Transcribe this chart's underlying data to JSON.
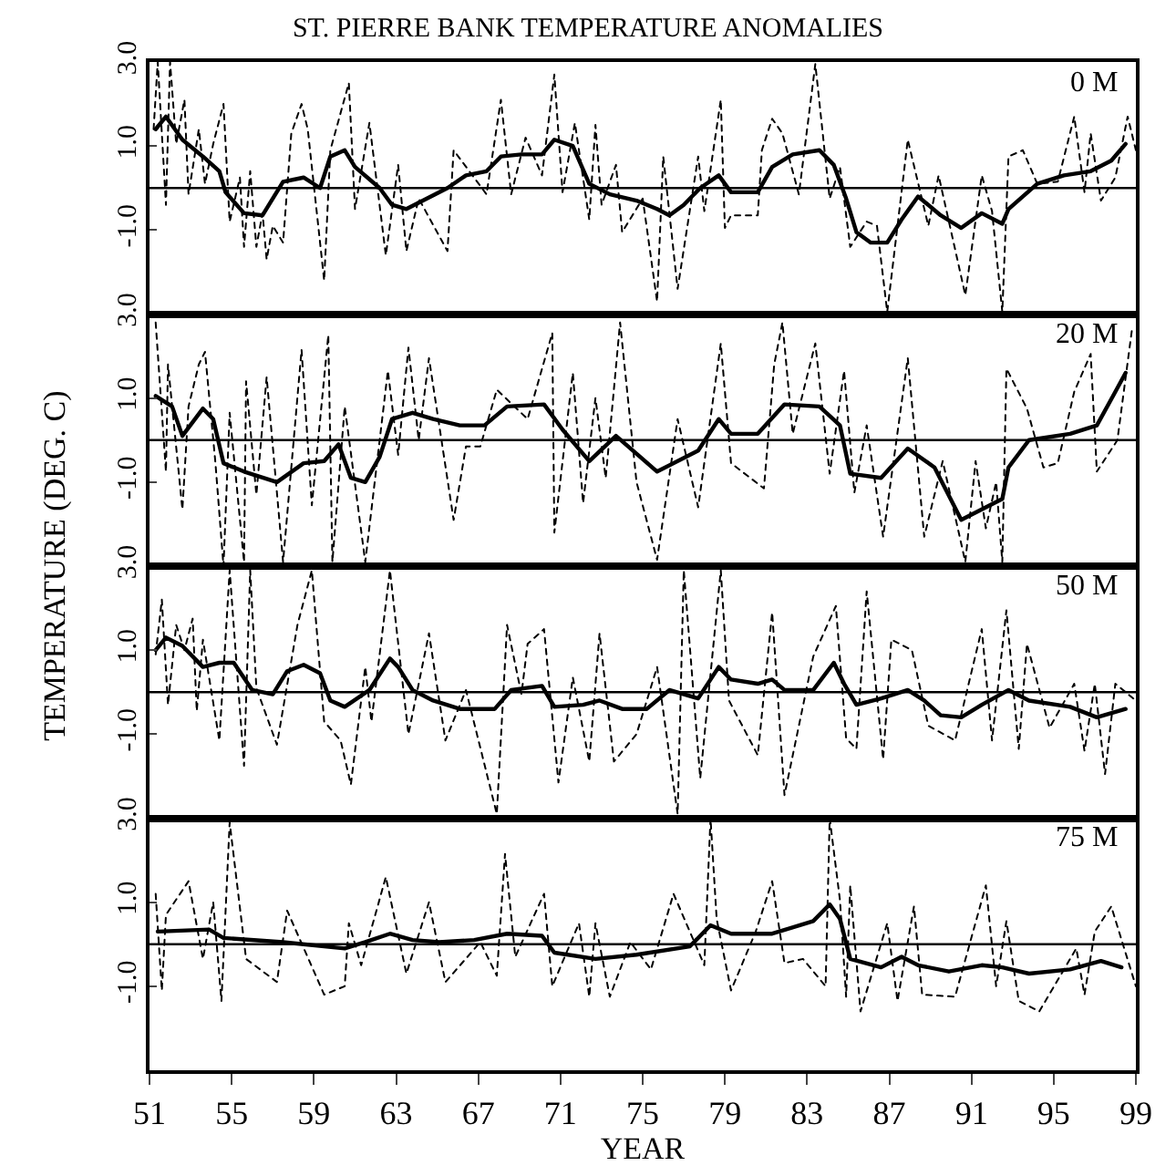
{
  "chart_data": [
    {
      "type": "line",
      "title": "ST. PIERRE BANK TEMPERATURE ANOMALIES",
      "ylabel": "TEMPERATURE (DEG. C)",
      "annotations": [
        "0 M"
      ],
      "xlim": [
        51,
        99
      ],
      "xticks": [
        51,
        55,
        59,
        63,
        67,
        71,
        75,
        79,
        83,
        87,
        91,
        95,
        99
      ],
      "ylim": [
        -3,
        3
      ],
      "yticks": [
        {
          "value": 3,
          "label": "3.0"
        },
        {
          "value": 1,
          "label": "1.0"
        },
        {
          "value": -1,
          "label": "-1.0"
        },
        {
          "value": -3,
          "label": null
        }
      ],
      "tick_labels": "y",
      "grid": false,
      "marker": "none",
      "ref_lines": [
        {
          "axis": "y",
          "value": 0,
          "color": "#000000"
        }
      ],
      "series": [
        {
          "color": "#000000",
          "line_style": "dotted",
          "x": [
            51.2,
            51.4,
            51.8,
            52.0,
            52.3,
            52.7,
            52.9,
            53.4,
            53.7,
            54.1,
            54.6,
            54.9,
            55.4,
            55.6,
            55.9,
            56.2,
            56.5,
            56.7,
            57.0,
            57.5,
            57.9,
            58.4,
            58.7,
            59.5,
            59.8,
            60.7,
            61.0,
            61.7,
            62.5,
            63.1,
            63.5,
            64.1,
            65.5,
            65.8,
            67.4,
            68.1,
            68.6,
            69.3,
            70.1,
            70.7,
            71.1,
            71.7,
            72.4,
            72.7,
            73.0,
            73.7,
            74.0,
            75.0,
            75.7,
            76.0,
            76.7,
            77.7,
            78.0,
            78.8,
            79.0,
            79.3,
            80.6,
            80.8,
            81.3,
            81.8,
            82.6,
            83.4,
            84.1,
            84.6,
            85.1,
            85.9,
            86.4,
            86.9,
            87.9,
            88.9,
            89.4,
            90.7,
            91.5,
            92.0,
            92.5,
            92.8,
            93.5,
            94.2,
            95.2,
            96.0,
            96.5,
            96.8,
            97.3,
            98.0,
            98.6,
            99.0
          ],
          "values": [
            1.4,
            3.0,
            -0.4,
            3.0,
            1.05,
            2.1,
            -0.15,
            1.4,
            0.1,
            1.05,
            2.0,
            -0.8,
            0.25,
            -1.4,
            0.4,
            -1.4,
            -0.6,
            -1.7,
            -0.9,
            -1.3,
            1.3,
            2.0,
            1.4,
            -2.2,
            0.9,
            2.5,
            -0.5,
            1.55,
            -1.6,
            0.55,
            -1.5,
            -0.25,
            -1.5,
            0.9,
            -0.15,
            2.1,
            -0.15,
            1.2,
            0.3,
            2.7,
            -0.1,
            1.55,
            -0.75,
            1.5,
            -0.4,
            0.55,
            -1.05,
            -0.25,
            -2.7,
            0.75,
            -2.4,
            0.75,
            -0.55,
            2.1,
            -0.95,
            -0.65,
            -0.65,
            0.9,
            1.65,
            1.3,
            -0.15,
            2.95,
            -0.25,
            0.5,
            -1.4,
            -0.8,
            -0.9,
            -2.95,
            1.15,
            -0.9,
            0.3,
            -2.55,
            0.3,
            -0.55,
            -2.95,
            0.75,
            0.9,
            0.1,
            0.15,
            1.7,
            -0.1,
            1.3,
            -0.3,
            0.25,
            1.7,
            0.9
          ]
        },
        {
          "color": "#000000",
          "line_style": "solid",
          "x": [
            51.3,
            51.8,
            52.6,
            53.6,
            54.4,
            54.7,
            55.6,
            56.5,
            57.5,
            58.5,
            59.3,
            59.8,
            60.5,
            61.0,
            62.2,
            62.8,
            63.5,
            64.5,
            65.5,
            66.4,
            67.4,
            68.1,
            69.1,
            70.1,
            70.7,
            71.6,
            72.4,
            73.4,
            74.7,
            75.7,
            76.3,
            77.0,
            77.8,
            78.7,
            79.3,
            80.6,
            81.3,
            82.3,
            83.6,
            84.3,
            84.9,
            85.4,
            86.1,
            86.9,
            87.6,
            88.4,
            89.5,
            90.5,
            91.5,
            92.5,
            92.8,
            94.2,
            95.5,
            96.8,
            97.8,
            98.5
          ],
          "values": [
            1.4,
            1.7,
            1.15,
            0.75,
            0.4,
            -0.1,
            -0.6,
            -0.65,
            0.15,
            0.25,
            0,
            0.75,
            0.9,
            0.5,
            0,
            -0.4,
            -0.5,
            -0.25,
            0,
            0.3,
            0.4,
            0.75,
            0.8,
            0.8,
            1.15,
            1.0,
            0.1,
            -0.15,
            -0.3,
            -0.5,
            -0.65,
            -0.4,
            0,
            0.3,
            -0.1,
            -0.1,
            0.5,
            0.8,
            0.9,
            0.55,
            -0.25,
            -1.05,
            -1.3,
            -1.3,
            -0.75,
            -0.2,
            -0.65,
            -0.95,
            -0.6,
            -0.85,
            -0.5,
            0.1,
            0.3,
            0.4,
            0.65,
            1.05
          ]
        }
      ]
    },
    {
      "type": "line",
      "annotations": [
        "20 M"
      ],
      "xlim": [
        51,
        99
      ],
      "xticks": [
        51,
        55,
        59,
        63,
        67,
        71,
        75,
        79,
        83,
        87,
        91,
        95,
        99
      ],
      "ylim": [
        -3,
        3
      ],
      "yticks": [
        {
          "value": 3,
          "label": "3.0"
        },
        {
          "value": 1,
          "label": "1.0"
        },
        {
          "value": -1,
          "label": "-1.0"
        },
        {
          "value": -3,
          "label": null
        }
      ],
      "tick_labels": "y",
      "grid": false,
      "marker": "none",
      "ref_lines": [
        {
          "axis": "y",
          "value": 0,
          "color": "#000000"
        }
      ],
      "series": [
        {
          "color": "#000000",
          "line_style": "dotted",
          "x": [
            51.3,
            51.8,
            51.9,
            52.6,
            52.9,
            53.4,
            53.7,
            54.2,
            54.6,
            54.9,
            55.6,
            55.7,
            56.2,
            56.7,
            57.5,
            58.4,
            58.9,
            59.7,
            59.9,
            60.5,
            61.5,
            62.6,
            63.1,
            63.6,
            64.1,
            64.6,
            65.8,
            66.4,
            67.1,
            67.9,
            69.4,
            70.6,
            70.7,
            71.6,
            72.1,
            72.7,
            73.2,
            73.9,
            74.7,
            75.7,
            76.7,
            77.7,
            78.8,
            79.3,
            80.9,
            81.4,
            81.8,
            82.3,
            83.4,
            84.1,
            84.8,
            85.3,
            85.9,
            86.7,
            87.9,
            88.7,
            89.6,
            90.7,
            91.2,
            91.7,
            92.2,
            92.5,
            92.7,
            93.7,
            94.5,
            95.2,
            96.0,
            96.8,
            97.1,
            98.1,
            98.8
          ],
          "values": [
            2.8,
            -0.75,
            1.8,
            -1.65,
            0.8,
            1.8,
            2.1,
            -0.5,
            -3.0,
            0.65,
            -2.9,
            1.4,
            -1.3,
            1.5,
            -2.9,
            2.15,
            -1.55,
            2.5,
            -2.9,
            0.8,
            -2.9,
            1.65,
            -0.35,
            2.2,
            0,
            1.95,
            -1.9,
            -0.15,
            -0.15,
            1.2,
            0.5,
            2.55,
            -2.2,
            1.6,
            -1.5,
            1.0,
            -0.9,
            2.8,
            -1.0,
            -2.85,
            0.5,
            -1.6,
            2.3,
            -0.55,
            -1.15,
            1.8,
            2.8,
            0.15,
            2.3,
            -0.8,
            1.65,
            -1.25,
            0.35,
            -2.3,
            1.95,
            -2.3,
            -0.5,
            -2.9,
            -0.5,
            -2.1,
            -1.0,
            -2.9,
            1.7,
            0.75,
            -0.65,
            -0.55,
            1.15,
            2.05,
            -0.75,
            0,
            2.6
          ]
        },
        {
          "color": "#000000",
          "line_style": "solid",
          "x": [
            51.3,
            52.1,
            52.6,
            53.6,
            54.1,
            54.6,
            55.6,
            57.2,
            58.5,
            59.5,
            60.2,
            60.8,
            61.5,
            62.2,
            62.8,
            63.8,
            64.8,
            66.1,
            67.3,
            68.4,
            70.2,
            71.1,
            72.4,
            73.7,
            75.7,
            77.7,
            78.7,
            79.3,
            80.6,
            81.9,
            83.6,
            84.6,
            85.1,
            86.6,
            87.9,
            89.2,
            90.5,
            91.5,
            92.5,
            92.8,
            93.8,
            95.8,
            97.1,
            98.0,
            98.5
          ],
          "values": [
            1.05,
            0.8,
            0.1,
            0.75,
            0.5,
            -0.55,
            -0.75,
            -1.0,
            -0.55,
            -0.5,
            -0.1,
            -0.9,
            -1.0,
            -0.4,
            0.5,
            0.65,
            0.5,
            0.35,
            0.35,
            0.8,
            0.85,
            0.25,
            -0.5,
            0.1,
            -0.75,
            -0.25,
            0.5,
            0.15,
            0.15,
            0.85,
            0.8,
            0.35,
            -0.8,
            -0.9,
            -0.2,
            -0.65,
            -1.9,
            -1.65,
            -1.4,
            -0.65,
            0,
            0.15,
            0.35,
            1.15,
            1.6
          ]
        }
      ]
    },
    {
      "type": "line",
      "annotations": [
        "50 M"
      ],
      "xlim": [
        51,
        99
      ],
      "xticks": [
        51,
        55,
        59,
        63,
        67,
        71,
        75,
        79,
        83,
        87,
        91,
        95,
        99
      ],
      "ylim": [
        -3,
        3
      ],
      "yticks": [
        {
          "value": 3,
          "label": "3.0"
        },
        {
          "value": 1,
          "label": "1.0"
        },
        {
          "value": -1,
          "label": "-1.0"
        },
        {
          "value": -3,
          "label": null
        }
      ],
      "tick_labels": "y",
      "grid": false,
      "marker": "none",
      "ref_lines": [
        {
          "axis": "y",
          "value": 0,
          "color": "#000000"
        }
      ],
      "series": [
        {
          "color": "#000000",
          "line_style": "dotted",
          "x": [
            51.3,
            51.6,
            51.9,
            52.3,
            52.7,
            53.1,
            53.3,
            53.6,
            54.4,
            54.9,
            55.6,
            55.9,
            56.2,
            57.2,
            58.2,
            58.9,
            59.5,
            60.3,
            60.8,
            61.5,
            61.8,
            62.7,
            63.6,
            64.6,
            65.4,
            66.4,
            67.9,
            68.4,
            69.1,
            69.4,
            70.2,
            70.9,
            71.6,
            72.4,
            72.9,
            73.6,
            74.7,
            75.7,
            76.7,
            77.0,
            77.8,
            78.8,
            79.2,
            80.6,
            81.3,
            81.9,
            83.3,
            84.4,
            84.9,
            85.4,
            85.9,
            86.7,
            87.1,
            88.1,
            88.9,
            90.2,
            91.5,
            92.0,
            92.7,
            93.3,
            93.7,
            94.8,
            96.0,
            96.5,
            97.0,
            97.5,
            98.0,
            99.0
          ],
          "values": [
            0.9,
            2.2,
            -0.3,
            1.6,
            1.0,
            1.75,
            -0.45,
            1.25,
            -1.15,
            2.9,
            -1.75,
            2.9,
            0.1,
            -1.25,
            1.6,
            2.9,
            -0.7,
            -1.15,
            -2.2,
            0.6,
            -0.7,
            2.9,
            -1.0,
            1.4,
            -1.15,
            0.05,
            -2.9,
            1.6,
            -0.05,
            1.15,
            1.5,
            -2.15,
            0.35,
            -1.65,
            1.4,
            -1.65,
            -1.0,
            0.6,
            -2.9,
            2.9,
            -2.05,
            2.9,
            -0.2,
            -1.5,
            1.9,
            -2.45,
            0.85,
            2.05,
            -1.1,
            -1.35,
            2.4,
            -1.6,
            1.25,
            1.0,
            -0.8,
            -1.15,
            1.5,
            -1.15,
            1.95,
            -1.35,
            1.15,
            -0.85,
            0.2,
            -1.4,
            0.2,
            -1.95,
            0.2,
            -0.2
          ]
        },
        {
          "color": "#000000",
          "line_style": "solid",
          "x": [
            51.3,
            51.8,
            52.6,
            53.6,
            54.4,
            55.1,
            56.0,
            57.0,
            57.7,
            58.5,
            59.3,
            59.8,
            60.5,
            61.7,
            62.7,
            63.1,
            63.8,
            64.8,
            66.1,
            67.8,
            68.6,
            70.1,
            70.7,
            72.1,
            72.9,
            74.0,
            75.2,
            76.3,
            77.7,
            78.7,
            79.3,
            80.6,
            81.3,
            81.9,
            83.3,
            84.3,
            84.8,
            85.4,
            86.6,
            87.9,
            88.7,
            89.5,
            90.5,
            91.5,
            92.8,
            93.8,
            95.8,
            97.1,
            98.5
          ],
          "values": [
            1.0,
            1.3,
            1.1,
            0.6,
            0.7,
            0.7,
            0.05,
            -0.05,
            0.5,
            0.65,
            0.45,
            -0.2,
            -0.35,
            0.05,
            0.8,
            0.6,
            0.05,
            -0.2,
            -0.4,
            -0.4,
            0.05,
            0.15,
            -0.35,
            -0.3,
            -0.2,
            -0.4,
            -0.4,
            0.05,
            -0.15,
            0.6,
            0.3,
            0.2,
            0.3,
            0.05,
            0.05,
            0.7,
            0.2,
            -0.3,
            -0.15,
            0.05,
            -0.2,
            -0.55,
            -0.6,
            -0.3,
            0.05,
            -0.2,
            -0.35,
            -0.6,
            -0.4
          ]
        }
      ]
    },
    {
      "type": "line",
      "annotations": [
        "75 M"
      ],
      "xlabel": "YEAR",
      "xlim": [
        51,
        99
      ],
      "xticks": [
        51,
        55,
        59,
        63,
        67,
        71,
        75,
        79,
        83,
        87,
        91,
        95,
        99
      ],
      "ylim": [
        -3,
        3
      ],
      "yticks": [
        {
          "value": 3,
          "label": "3.0"
        },
        {
          "value": 1,
          "label": "1.0"
        },
        {
          "value": -1,
          "label": "-1.0"
        },
        {
          "value": -3,
          "label": null
        }
      ],
      "grid": false,
      "marker": "none",
      "ref_lines": [
        {
          "axis": "y",
          "value": 0,
          "color": "#000000"
        }
      ],
      "series": [
        {
          "color": "#000000",
          "line_style": "dotted",
          "x": [
            51.3,
            51.6,
            51.8,
            52.9,
            53.6,
            54.1,
            54.5,
            54.9,
            55.7,
            57.2,
            57.7,
            59.5,
            60.5,
            60.7,
            61.3,
            62.5,
            63.5,
            64.6,
            65.4,
            67.1,
            67.9,
            68.3,
            68.8,
            70.2,
            70.6,
            71.9,
            72.4,
            72.7,
            73.4,
            74.4,
            75.4,
            76.5,
            78.0,
            78.3,
            78.6,
            79.3,
            80.5,
            81.3,
            81.9,
            82.8,
            83.9,
            84.1,
            84.6,
            84.9,
            85.1,
            85.6,
            86.9,
            87.4,
            88.2,
            88.6,
            90.2,
            91.7,
            92.2,
            92.7,
            93.3,
            94.3,
            96.1,
            96.5,
            97.0,
            97.8,
            99.0
          ],
          "values": [
            1.2,
            -1.1,
            0.7,
            1.5,
            -0.35,
            1.0,
            -1.35,
            2.9,
            -0.35,
            -0.9,
            0.8,
            -1.2,
            -1.0,
            0.5,
            -0.5,
            1.6,
            -0.7,
            1.0,
            -0.9,
            0.05,
            -0.75,
            2.15,
            -0.3,
            1.2,
            -1.0,
            0.5,
            -1.25,
            0.5,
            -1.25,
            0.05,
            -0.6,
            1.2,
            -0.5,
            3.0,
            0.6,
            -1.1,
            0.3,
            1.5,
            -0.45,
            -0.35,
            -1.0,
            3.0,
            1.05,
            -1.25,
            1.4,
            -1.6,
            0.5,
            -1.35,
            0.9,
            -1.2,
            -1.25,
            1.4,
            -1.0,
            0.55,
            -1.35,
            -1.6,
            -0.1,
            -1.2,
            0.3,
            0.9,
            -1.0
          ]
        },
        {
          "color": "#000000",
          "line_style": "solid",
          "x": [
            51.4,
            53.9,
            54.6,
            57.5,
            60.5,
            61.5,
            62.7,
            63.8,
            65.1,
            66.8,
            68.4,
            70.1,
            70.7,
            72.7,
            74.7,
            77.3,
            78.3,
            79.3,
            81.3,
            83.3,
            84.1,
            84.6,
            85.1,
            86.6,
            87.6,
            88.4,
            89.9,
            91.5,
            92.5,
            93.8,
            95.8,
            97.3,
            98.3
          ],
          "values": [
            0.3,
            0.35,
            0.15,
            0.05,
            -0.1,
            0.05,
            0.25,
            0.1,
            0.05,
            0.1,
            0.25,
            0.2,
            -0.2,
            -0.35,
            -0.25,
            -0.05,
            0.45,
            0.25,
            0.25,
            0.55,
            0.95,
            0.6,
            -0.35,
            -0.55,
            -0.3,
            -0.5,
            -0.65,
            -0.5,
            -0.55,
            -0.7,
            -0.6,
            -0.4,
            -0.55
          ]
        }
      ]
    }
  ]
}
